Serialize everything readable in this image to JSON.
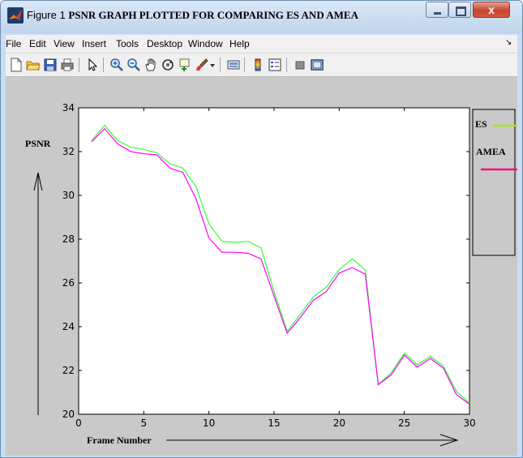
{
  "window": {
    "figure_label": "Figure 1",
    "caption": "PSNR GRAPH PLOTTED FOR COMPARING ES AND AMEA",
    "close_symbol": "x"
  },
  "menu": {
    "items": [
      "File",
      "Edit",
      "View",
      "Insert",
      "Tools",
      "Desktop",
      "Window",
      "Help"
    ],
    "arrow": "↘"
  },
  "toolbar": {
    "icons": [
      "new-file-icon",
      "open-folder-icon",
      "save-icon",
      "print-icon",
      "pointer-arrow-icon",
      "zoom-in-icon",
      "zoom-out-icon",
      "pan-hand-icon",
      "rotate-3d-icon",
      "data-cursor-icon",
      "brush-icon",
      "brush-dropdown-icon",
      "link-plot-icon",
      "colorbar-icon",
      "legend-icon",
      "hide-plot-tools-icon",
      "show-plot-tools-icon"
    ]
  },
  "colors": {
    "es": "#33ff33",
    "amea": "#ff00ff",
    "legend_es": "#a6e61e",
    "legend_amea": "#ff0d78"
  },
  "chart_data": {
    "type": "line",
    "xlabel": "Frame Number",
    "ylabel": "PSNR",
    "xlim": [
      0,
      30
    ],
    "ylim": [
      20,
      34
    ],
    "xticks": [
      0,
      5,
      10,
      15,
      20,
      25,
      30
    ],
    "yticks": [
      20,
      22,
      24,
      26,
      28,
      30,
      32,
      34
    ],
    "grid": false,
    "legend_position": "outside-right",
    "x": [
      1,
      2,
      3,
      4,
      5,
      6,
      7,
      8,
      9,
      10,
      11,
      12,
      13,
      14,
      15,
      16,
      17,
      18,
      19,
      20,
      21,
      22,
      23,
      24,
      25,
      26,
      27,
      28,
      29,
      30
    ],
    "series": [
      {
        "name": "ES",
        "values": [
          32.5,
          33.2,
          32.5,
          32.2,
          32.1,
          31.95,
          31.45,
          31.25,
          30.4,
          28.7,
          27.9,
          27.85,
          27.9,
          27.6,
          25.6,
          23.8,
          24.55,
          25.35,
          25.8,
          26.6,
          27.1,
          26.6,
          21.35,
          21.9,
          22.8,
          22.25,
          22.65,
          22.2,
          21.05,
          20.5
        ]
      },
      {
        "name": "AMEA",
        "values": [
          32.45,
          33.05,
          32.35,
          32.0,
          31.9,
          31.85,
          31.25,
          31.05,
          29.85,
          28.05,
          27.4,
          27.4,
          27.35,
          27.1,
          25.4,
          23.7,
          24.4,
          25.2,
          25.6,
          26.45,
          26.7,
          26.4,
          21.35,
          21.8,
          22.7,
          22.15,
          22.55,
          22.1,
          20.9,
          20.45
        ]
      }
    ]
  }
}
